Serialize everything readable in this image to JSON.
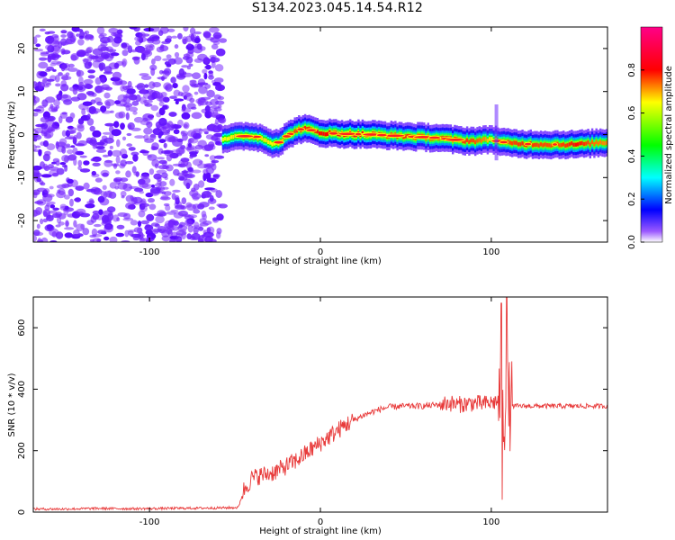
{
  "title": "S134.2023.045.14.54.R12",
  "chart_data": [
    {
      "type": "heatmap",
      "xlabel": "Height of straight line (km)",
      "ylabel": "Frequency (Hz)",
      "xlim": [
        -168,
        168
      ],
      "ylim": [
        -25,
        25
      ],
      "xticks": [
        -100,
        0,
        100
      ],
      "yticks": [
        -20,
        -10,
        0,
        10,
        20
      ],
      "colorbar": {
        "label": "Normalized spectral amplitude",
        "range": [
          0,
          1
        ],
        "ticks": [
          "0.0",
          "0.2",
          "0.4",
          "0.6",
          "0.8"
        ],
        "colors": [
          "#ffffff",
          "#7a00ff",
          "#0000ff",
          "#00ffff",
          "#00ff00",
          "#ffff00",
          "#ff0000",
          "#ff0080"
        ]
      },
      "noise_region_x": [
        -168,
        -57
      ],
      "signal_ridge": {
        "x": [
          -57,
          -50,
          -42,
          -35,
          -28,
          -24,
          -20,
          -15,
          -10,
          -5,
          0,
          5,
          10,
          20,
          30,
          40,
          50,
          60,
          70,
          80,
          90,
          96,
          100,
          104,
          110,
          120,
          130,
          140,
          150,
          160,
          168
        ],
        "freq": [
          -1,
          -0.6,
          -0.3,
          -0.8,
          -2.0,
          -1.8,
          -0.5,
          0.8,
          1.4,
          1.0,
          0.4,
          0.3,
          0.2,
          0.1,
          0.0,
          -0.2,
          -0.4,
          -0.6,
          -0.8,
          -1.3,
          -1.5,
          -1.3,
          -1.0,
          -1.5,
          -2.0,
          -2.2,
          -2.3,
          -2.3,
          -2.3,
          -2.0,
          -1.8
        ],
        "amplitude": [
          0.5,
          0.6,
          0.65,
          0.6,
          0.55,
          0.6,
          0.7,
          0.8,
          0.85,
          0.85,
          0.9,
          0.9,
          0.95,
          1.0,
          0.95,
          0.8,
          0.85,
          0.75,
          0.8,
          0.85,
          0.8,
          0.7,
          0.55,
          0.65,
          0.8,
          0.85,
          0.8,
          0.8,
          0.9,
          0.75,
          0.7
        ]
      }
    },
    {
      "type": "line",
      "xlabel": "Height of straight line (km)",
      "ylabel": "SNR (10 * v/v)",
      "xlim": [
        -168,
        168
      ],
      "ylim": [
        0,
        700
      ],
      "xticks": [
        -100,
        0,
        100
      ],
      "yticks": [
        0,
        200,
        400,
        600
      ],
      "color": "#e83a3a",
      "series": [
        {
          "x": [
            -168,
            -150,
            -130,
            -110,
            -90,
            -70,
            -55,
            -48,
            -45,
            -40,
            -35,
            -30,
            -25,
            -20,
            -15,
            -10,
            -5,
            0,
            5,
            10,
            15,
            20,
            25,
            30,
            35,
            40,
            50,
            60,
            70,
            75,
            80,
            85,
            90,
            95,
            100,
            103,
            105,
            107,
            108,
            109,
            110,
            112,
            115,
            120,
            130,
            140,
            150,
            160,
            168
          ],
          "y": [
            10,
            10,
            12,
            11,
            12,
            13,
            14,
            15,
            70,
            110,
            120,
            125,
            135,
            150,
            165,
            185,
            205,
            225,
            245,
            265,
            285,
            300,
            315,
            325,
            335,
            342,
            345,
            345,
            350,
            355,
            350,
            352,
            355,
            352,
            355,
            360,
            370,
            300,
            340,
            360,
            350,
            345,
            345,
            345,
            345,
            345,
            345,
            345,
            345
          ]
        }
      ],
      "spikes": [
        {
          "x": 106,
          "min": 40,
          "max": 680
        },
        {
          "x": 109,
          "min": 60,
          "max": 700
        }
      ]
    }
  ]
}
